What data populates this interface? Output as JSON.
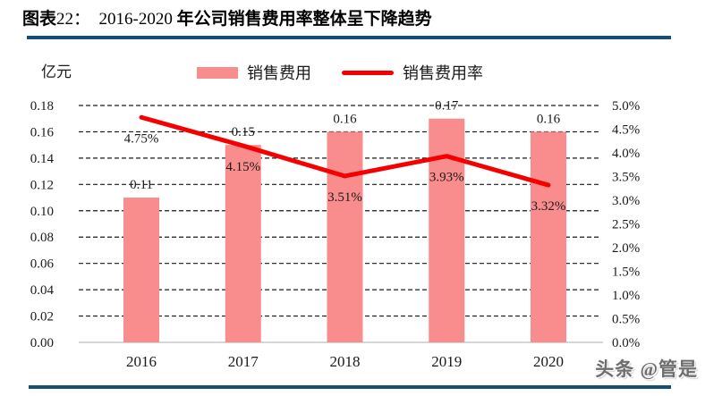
{
  "header": {
    "fig_label": "图表",
    "fig_number": "22：",
    "year_range": "2016-2020",
    "title_rest": "年公司销售费用率整体呈下降趋势"
  },
  "watermark": "头条 @管是",
  "colors": {
    "bar": "#F98C8C",
    "line": "#F40000",
    "rule": "#174E74",
    "baseline": "#C9C9C9",
    "grid": "#1A1A1A"
  },
  "chart_data": {
    "type": "combo-bar-line",
    "title": "2016-2020 年公司销售费用率整体呈下降趋势",
    "unit_label": "亿元",
    "categories": [
      "2016",
      "2017",
      "2018",
      "2019",
      "2020"
    ],
    "series": [
      {
        "name": "销售费用",
        "type": "bar",
        "axis": "left",
        "color": "#F98C8C",
        "values": [
          0.11,
          0.15,
          0.16,
          0.17,
          0.16
        ],
        "value_labels": [
          "0.11",
          "0.15",
          "0.16",
          "0.17",
          "0.16"
        ]
      },
      {
        "name": "销售费用率",
        "type": "line",
        "axis": "right",
        "color": "#F40000",
        "values": [
          4.75,
          4.15,
          3.51,
          3.93,
          3.32
        ],
        "value_labels": [
          "4.75%",
          "4.15%",
          "3.51%",
          "3.93%",
          "3.32%"
        ]
      }
    ],
    "left_axis": {
      "min": 0,
      "max": 0.18,
      "step": 0.02,
      "tick_labels": [
        "0.00",
        "0.02",
        "0.04",
        "0.06",
        "0.08",
        "0.10",
        "0.12",
        "0.14",
        "0.16",
        "0.18"
      ]
    },
    "right_axis": {
      "min": 0,
      "max": 5,
      "step": 0.5,
      "tick_labels": [
        "0.0%",
        "0.5%",
        "1.0%",
        "1.5%",
        "2.0%",
        "2.5%",
        "3.0%",
        "3.5%",
        "4.0%",
        "4.5%",
        "5.0%"
      ]
    },
    "grid": "horizontal-dashed",
    "legend_position": "top-center"
  }
}
